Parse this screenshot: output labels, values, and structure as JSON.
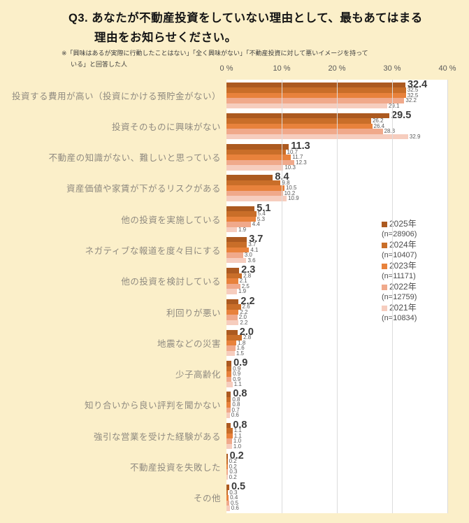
{
  "title": {
    "line1": "Q3. あなたが不動産投資をしていない理由として、最もあてはまる",
    "line2": "理由をお知らせください。"
  },
  "note": {
    "line1": "※「興味はあるが実際に行動したことはない」「全く興味がない」「不動産投資に対して悪いイメージを持って",
    "line2": "いる」と回答した人"
  },
  "colors": {
    "background": "#FBEFC9",
    "plot_background": "#FFFFFF",
    "gridline": "#DCDCDC",
    "value_label_main": "#3B3B3B",
    "value_label_small": "#595959",
    "category_label": "#8F8A80"
  },
  "chart_data": {
    "type": "bar",
    "orientation": "horizontal",
    "xlim": [
      0,
      40
    ],
    "x_tick_values": [
      0,
      10,
      20,
      30,
      40
    ],
    "x_ticks": [
      "0 %",
      "10 %",
      "20 %",
      "30 %",
      "40 %"
    ],
    "grid": true,
    "legend_position": "right-inside",
    "categories": [
      "投資する費用が高い（投資にかける預貯金がない）",
      "投資そのものに興味がない",
      "不動産の知識がない、難しいと思っている",
      "資産価値や家賃が下がるリスクがある",
      "他の投資を実施している",
      "ネガティブな報道を度々目にする",
      "他の投資を検討している",
      "利回りが悪い",
      "地震などの災害",
      "少子高齢化",
      "知り合いから良い評判を聞かない",
      "強引な営業を受けた経験がある",
      "不動産投資を失敗した",
      "その他"
    ],
    "series": [
      {
        "name": "2025年",
        "n_label": "(n=28906)",
        "color": "#AC5A20",
        "values": [
          32.4,
          29.5,
          11.3,
          8.4,
          5.1,
          3.7,
          2.3,
          2.2,
          2.0,
          0.9,
          0.8,
          0.8,
          0.2,
          0.5
        ]
      },
      {
        "name": "2024年",
        "n_label": "(n=10407)",
        "color": "#C96E29",
        "values": [
          32.5,
          26.2,
          10.7,
          9.8,
          5.4,
          3.7,
          2.8,
          2.6,
          2.8,
          0.9,
          0.8,
          1.1,
          0.2,
          0.3
        ]
      },
      {
        "name": "2023年",
        "n_label": "(n=11171)",
        "color": "#E8823C",
        "values": [
          32.5,
          26.4,
          11.7,
          10.5,
          5.3,
          4.1,
          2.1,
          2.2,
          1.8,
          0.9,
          0.8,
          1.1,
          0.2,
          0.4
        ]
      },
      {
        "name": "2022年",
        "n_label": "(n=12759)",
        "color": "#F0A98B",
        "values": [
          32.2,
          28.3,
          12.3,
          10.2,
          4.4,
          3.0,
          2.5,
          2.0,
          1.6,
          0.9,
          0.7,
          1.0,
          0.3,
          0.5
        ]
      },
      {
        "name": "2021年",
        "n_label": "(n=10834)",
        "color": "#F6CDBE",
        "values": [
          29.1,
          32.9,
          10.3,
          10.9,
          1.9,
          3.6,
          1.9,
          2.2,
          1.5,
          1.1,
          0.6,
          1.0,
          0.2,
          0.6
        ]
      }
    ]
  }
}
